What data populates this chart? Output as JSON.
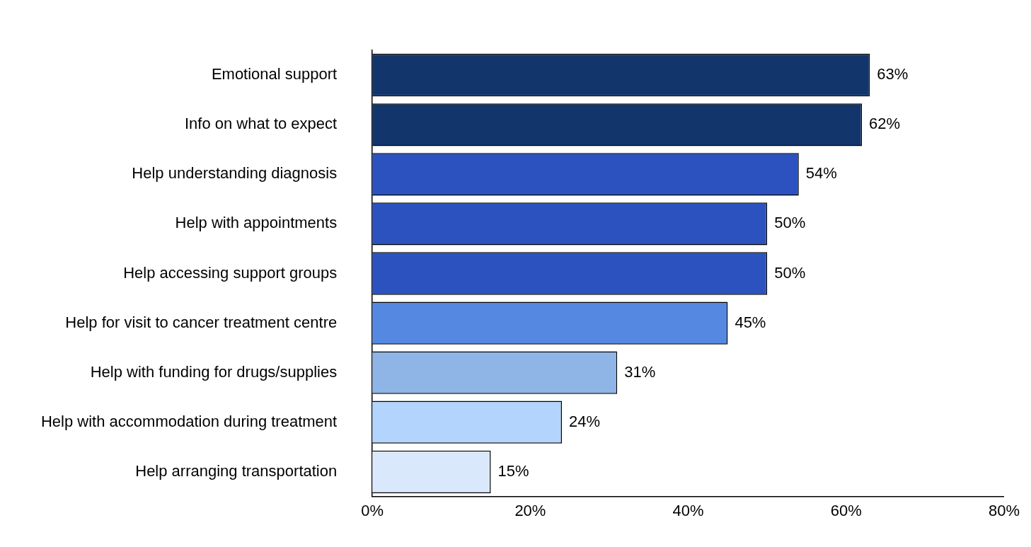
{
  "chart_data": {
    "type": "bar",
    "orientation": "horizontal",
    "categories": [
      "Emotional support",
      "Info on what to expect",
      "Help understanding diagnosis",
      "Help with appointments",
      "Help accessing support groups",
      "Help for visit to cancer treatment centre",
      "Help with funding for drugs/supplies",
      "Help with accommodation during treatment",
      "Help arranging transportation"
    ],
    "values": [
      63,
      62,
      54,
      50,
      50,
      45,
      31,
      24,
      15
    ],
    "colors": [
      "#12366b",
      "#12366b",
      "#2c52c0",
      "#2c52c0",
      "#2c52c0",
      "#5588e0",
      "#8fb4e6",
      "#b3d4fc",
      "#dae8fc"
    ],
    "value_labels": [
      "63%",
      "62%",
      "54%",
      "50%",
      "50%",
      "45%",
      "31%",
      "24%",
      "15%"
    ],
    "xlim": [
      0,
      80
    ],
    "xticks": [
      {
        "value": 0,
        "label": "0%"
      },
      {
        "value": 20,
        "label": "20%"
      },
      {
        "value": 40,
        "label": "40%"
      },
      {
        "value": 60,
        "label": "60%"
      },
      {
        "value": 80,
        "label": "80%"
      }
    ],
    "grid": false,
    "legend": false
  }
}
